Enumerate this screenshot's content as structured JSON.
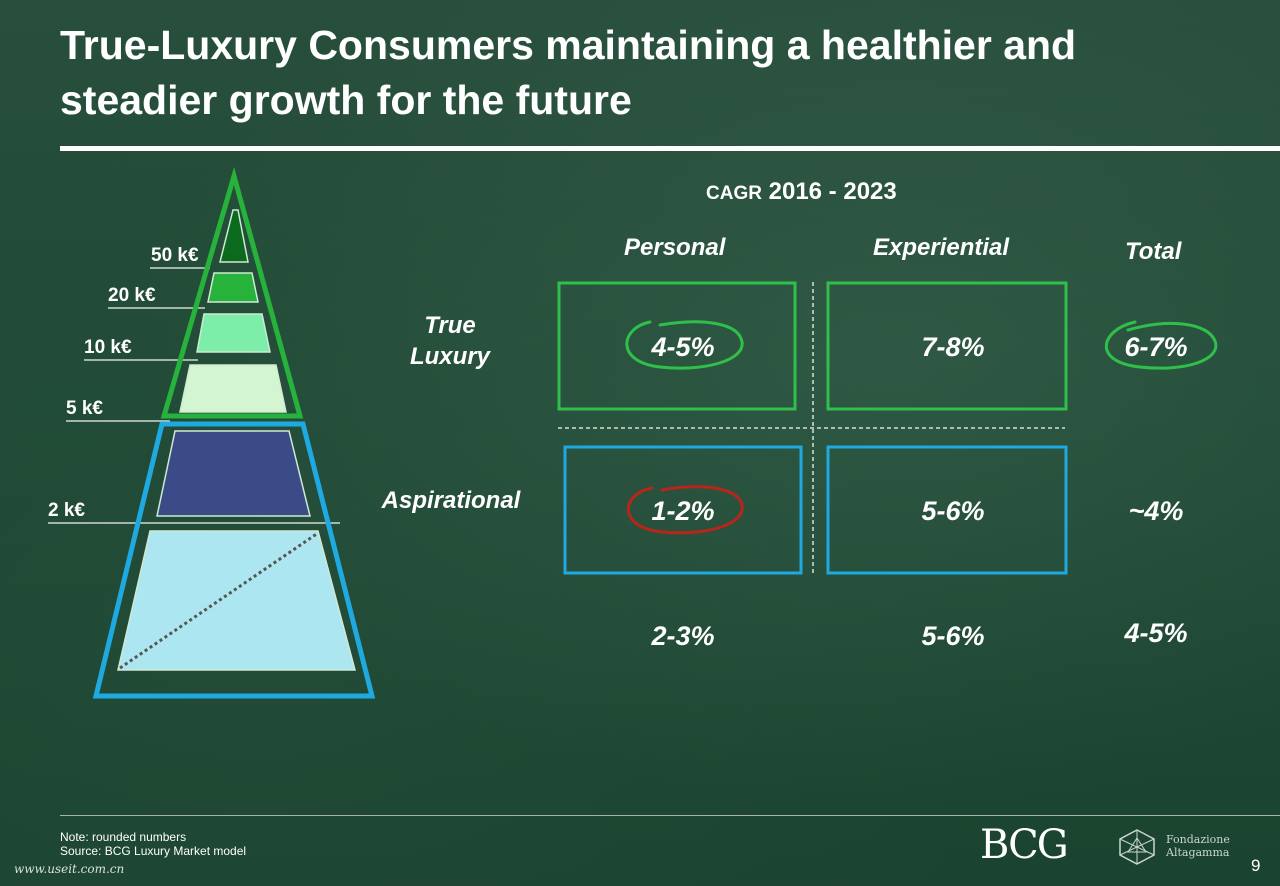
{
  "slide": {
    "title_line1": "True-Luxury Consumers maintaining a healthier and",
    "title_line2": "steadier growth for the future",
    "page_number": "9",
    "note": "Note: rounded numbers",
    "source": "Source: BCG Luxury Market model",
    "watermark": "www.useit.com.cn"
  },
  "pyramid": {
    "levels": [
      "50 k€",
      "20 k€",
      "10 k€",
      "5 k€",
      "2 k€"
    ],
    "colors": {
      "true_luxury_outline": "#27b23c",
      "aspirational_outline": "#1ea9e0",
      "tier_50k": "#0c6a1f",
      "tier_20k": "#27b23c",
      "tier_10k": "#7dedaa",
      "tier_5k": "#d3f6d0",
      "tier_2k": "#3b4b87",
      "tier_base": "#ace6f0"
    }
  },
  "table": {
    "header_prefix": "CAGR",
    "header_period": "2016 - 2023",
    "columns": [
      "Personal",
      "Experiential",
      "Total"
    ],
    "rows": [
      {
        "label_line1": "True",
        "label_line2": "Luxury",
        "personal": "4-5%",
        "experiential": "7-8%",
        "total": "6-7%"
      },
      {
        "label_line1": "Aspirational",
        "label_line2": "",
        "personal": "1-2%",
        "experiential": "5-6%",
        "total": "~4%"
      }
    ],
    "totals_row": {
      "personal": "2-3%",
      "experiential": "5-6%",
      "total": "4-5%"
    },
    "colors": {
      "true_luxury_box": "#2fbf4a",
      "aspirational_box": "#1ea9e0",
      "highlight_good": "#2fbf4a",
      "highlight_bad": "#b7251b"
    }
  },
  "logos": {
    "bcg": "BCG",
    "fondazione_line1": "Fondazione",
    "fondazione_line2": "Altagamma"
  }
}
